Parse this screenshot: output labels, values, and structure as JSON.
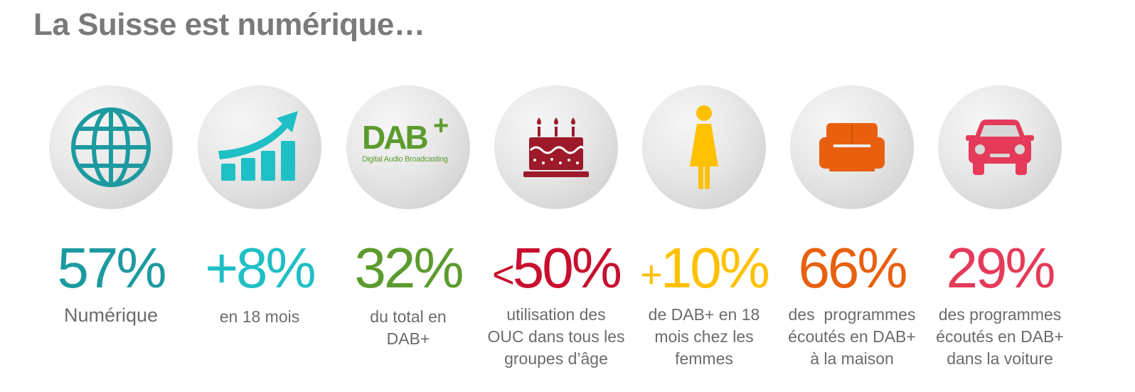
{
  "title": "La Suisse est numérique…",
  "colors": {
    "title": "#7a7a7a",
    "label": "#6b6b6b",
    "teal_dark": "#1c9aa0",
    "teal": "#1fbfc6",
    "green": "#5c9b2e",
    "crimson": "#c8102e",
    "yellow": "#ffc000",
    "orange": "#e8600e",
    "pink": "#e53a5a"
  },
  "stats": [
    {
      "icon": "globe-icon",
      "prefix": "",
      "value": "57%",
      "color": "#1c9aa0",
      "label": [
        "Numérique"
      ]
    },
    {
      "icon": "growth-chart-icon",
      "prefix": "",
      "value": "+8%",
      "color": "#1fbfc6",
      "label": [
        "en 18 mois"
      ]
    },
    {
      "icon": "dab-plus-logo",
      "prefix": "",
      "value": "32%",
      "color": "#5c9b2e",
      "label": [
        "du total en",
        "DAB+"
      ],
      "logo_text": "DAB",
      "logo_plus": "+",
      "logo_subtitle": "Digital Audio Broadcasting"
    },
    {
      "icon": "birthday-cake-icon",
      "prefix": "<",
      "value": "50%",
      "color": "#c8102e",
      "label": [
        "utilisation des",
        "OUC dans tous les",
        "groupes d’âge"
      ]
    },
    {
      "icon": "woman-icon",
      "prefix": "+",
      "value": "10%",
      "color": "#ffc000",
      "label": [
        "de DAB+ en 18",
        "mois chez les",
        "femmes"
      ]
    },
    {
      "icon": "armchair-icon",
      "prefix": "",
      "value": "66%",
      "color": "#e8600e",
      "label": [
        "des  programmes",
        "écoutés en DAB+",
        "à la maison"
      ]
    },
    {
      "icon": "car-icon",
      "prefix": "",
      "value": "29%",
      "color": "#e53a5a",
      "label": [
        "des programmes",
        "écoutés en DAB+",
        "dans la voiture"
      ]
    }
  ]
}
